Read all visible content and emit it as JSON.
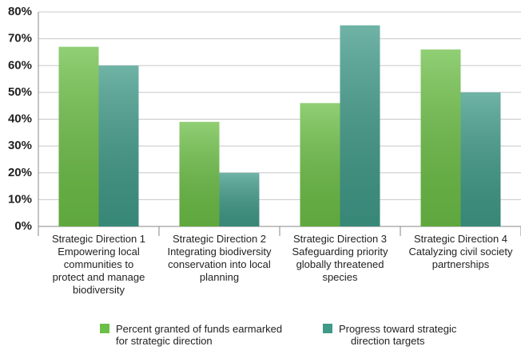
{
  "chart_data": {
    "type": "bar",
    "categories": [
      "Strategic Direction 1\nEmpowering local\ncommunities to\nprotect and manage\nbiodiversity",
      "Strategic Direction 2\nIntegrating biodiversity\nconservation into local\nplanning",
      "Strategic Direction 3\nSafeguarding priority\nglobally threatened\nspecies",
      "Strategic Direction 4\nCatalyzing civil society\npartnerships"
    ],
    "series": [
      {
        "name": "Percent granted of funds earmarked\nfor strategic direction",
        "color": "#6cbf46",
        "values": [
          67,
          39,
          46,
          66
        ]
      },
      {
        "name": "Progress toward strategic\ndirection targets",
        "color": "#3f9a88",
        "values": [
          60,
          20,
          75,
          50
        ]
      }
    ],
    "ylim": [
      0,
      80
    ],
    "yticks": [
      {
        "value": 0,
        "label": "0%"
      },
      {
        "value": 10,
        "label": "10%"
      },
      {
        "value": 20,
        "label": "20%"
      },
      {
        "value": 30,
        "label": "30%"
      },
      {
        "value": 40,
        "label": "40%"
      },
      {
        "value": 50,
        "label": "50%"
      },
      {
        "value": 60,
        "label": "60%"
      },
      {
        "value": 70,
        "label": "70%"
      },
      {
        "value": 80,
        "label": "80%"
      }
    ],
    "grid": true
  }
}
